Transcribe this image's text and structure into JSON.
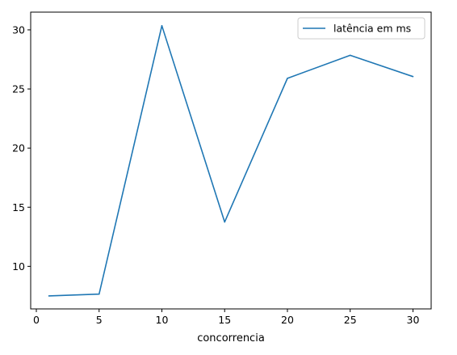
{
  "chart_data": {
    "type": "line",
    "title": "",
    "xlabel": "concorrencia",
    "ylabel": "",
    "xlim": [
      -0.45,
      31.45
    ],
    "ylim": [
      6.4,
      31.5
    ],
    "xticks": [
      0,
      5,
      10,
      15,
      20,
      25,
      30
    ],
    "yticks": [
      10,
      15,
      20,
      25,
      30
    ],
    "grid": false,
    "legend": {
      "position": "top-right"
    },
    "series": [
      {
        "name": "latência em ms",
        "color": "#1f77b4",
        "x": [
          1,
          5,
          10,
          15,
          20,
          25,
          30
        ],
        "y": [
          7.5,
          7.65,
          30.35,
          13.75,
          25.9,
          27.85,
          26.05
        ]
      }
    ]
  }
}
